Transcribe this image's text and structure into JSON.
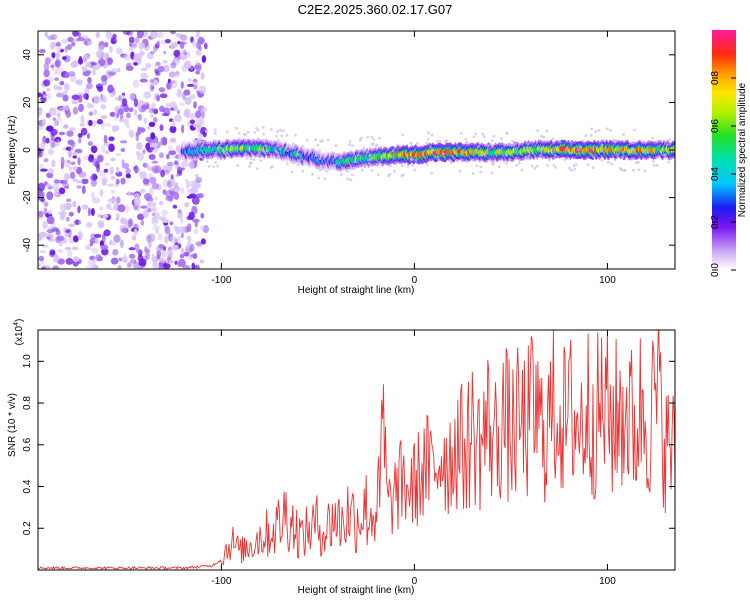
{
  "title": "C2E2.2025.360.02.17.G07",
  "colors": {
    "line": "#ee3333",
    "frame": "#000000"
  },
  "chart_data": [
    {
      "type": "heatmap",
      "name": "spectrogram",
      "xlabel": "Height of straight line (km)",
      "ylabel": "Frequency (Hz)",
      "xlim": [
        -195,
        135
      ],
      "ylim": [
        -50,
        50
      ],
      "xticks": [
        -100,
        0,
        100
      ],
      "yticks": [
        -40,
        -20,
        0,
        20,
        40
      ],
      "xtick_labels": [
        "-100",
        "0",
        "100"
      ],
      "ytick_labels": [
        "-40",
        "-20",
        "0",
        "20",
        "40"
      ],
      "colorbar": {
        "label": "Normalized spectral amplitude",
        "range": [
          0,
          1
        ],
        "ticks": [
          0.0,
          0.2,
          0.4,
          0.6,
          0.8
        ],
        "tick_labels": [
          "0.0",
          "0.2",
          "0.4",
          "0.6",
          "0.8"
        ]
      },
      "noise_region_x": [
        -195,
        -108
      ],
      "ridge": {
        "x": [
          -120,
          -110,
          -100,
          -90,
          -80,
          -70,
          -60,
          -50,
          -40,
          -30,
          -20,
          -10,
          0,
          10,
          20,
          30,
          40,
          50,
          60,
          70,
          80,
          90,
          100,
          110,
          120,
          130
        ],
        "freq": [
          -1,
          0,
          0,
          1,
          1,
          0,
          -2,
          -4,
          -5,
          -4,
          -3,
          -2,
          -2,
          -1,
          -1,
          -1,
          -1,
          -1,
          0,
          0,
          0,
          0,
          0,
          0,
          0,
          0
        ],
        "amplitude": [
          0.3,
          0.45,
          0.55,
          0.6,
          0.5,
          0.4,
          0.35,
          0.3,
          0.35,
          0.5,
          0.55,
          0.7,
          0.9,
          0.9,
          0.85,
          0.7,
          0.6,
          0.65,
          0.6,
          0.7,
          0.85,
          0.9,
          0.75,
          0.8,
          0.75,
          0.6
        ]
      }
    },
    {
      "type": "line",
      "name": "snr",
      "xlabel": "Height of straight line (km)",
      "ylabel": "SNR (10 * v/v)",
      "exponent_label": "(x10",
      "exponent_sup": "4",
      "exponent_close": ")",
      "xlim": [
        -195,
        135
      ],
      "ylim": [
        0,
        1.15
      ],
      "xticks": [
        -100,
        0,
        100
      ],
      "yticks": [
        0.2,
        0.4,
        0.6,
        0.8,
        1.0
      ],
      "xtick_labels": [
        "-100",
        "0",
        "100"
      ],
      "ytick_labels": [
        "0.2",
        "0.4",
        "0.6",
        "0.8",
        "1.0"
      ],
      "series": [
        {
          "name": "SNR",
          "x": [
            -195,
            -180,
            -160,
            -140,
            -120,
            -105,
            -100,
            -95,
            -90,
            -85,
            -80,
            -75,
            -70,
            -66,
            -62,
            -58,
            -54,
            -50,
            -46,
            -42,
            -38,
            -34,
            -30,
            -26,
            -22,
            -18,
            -16,
            -14,
            -10,
            -6,
            -2,
            2,
            6,
            10,
            14,
            18,
            22,
            26,
            30,
            34,
            38,
            42,
            46,
            50,
            54,
            58,
            62,
            66,
            70,
            74,
            78,
            82,
            86,
            90,
            94,
            98,
            102,
            106,
            110,
            114,
            118,
            122,
            126,
            130,
            135
          ],
          "y": [
            0.01,
            0.01,
            0.01,
            0.01,
            0.01,
            0.02,
            0.05,
            0.14,
            0.09,
            0.12,
            0.16,
            0.18,
            0.22,
            0.28,
            0.2,
            0.16,
            0.2,
            0.22,
            0.18,
            0.26,
            0.22,
            0.28,
            0.24,
            0.3,
            0.26,
            0.34,
            0.72,
            0.3,
            0.36,
            0.42,
            0.38,
            0.44,
            0.5,
            0.46,
            0.58,
            0.52,
            0.62,
            0.56,
            0.66,
            0.6,
            0.7,
            0.62,
            0.74,
            0.64,
            0.7,
            0.68,
            0.78,
            0.66,
            0.72,
            0.8,
            0.7,
            0.76,
            0.68,
            0.78,
            0.72,
            0.8,
            0.7,
            0.74,
            0.78,
            0.66,
            0.8,
            0.72,
            0.84,
            0.6,
            0.56
          ]
        }
      ]
    }
  ]
}
